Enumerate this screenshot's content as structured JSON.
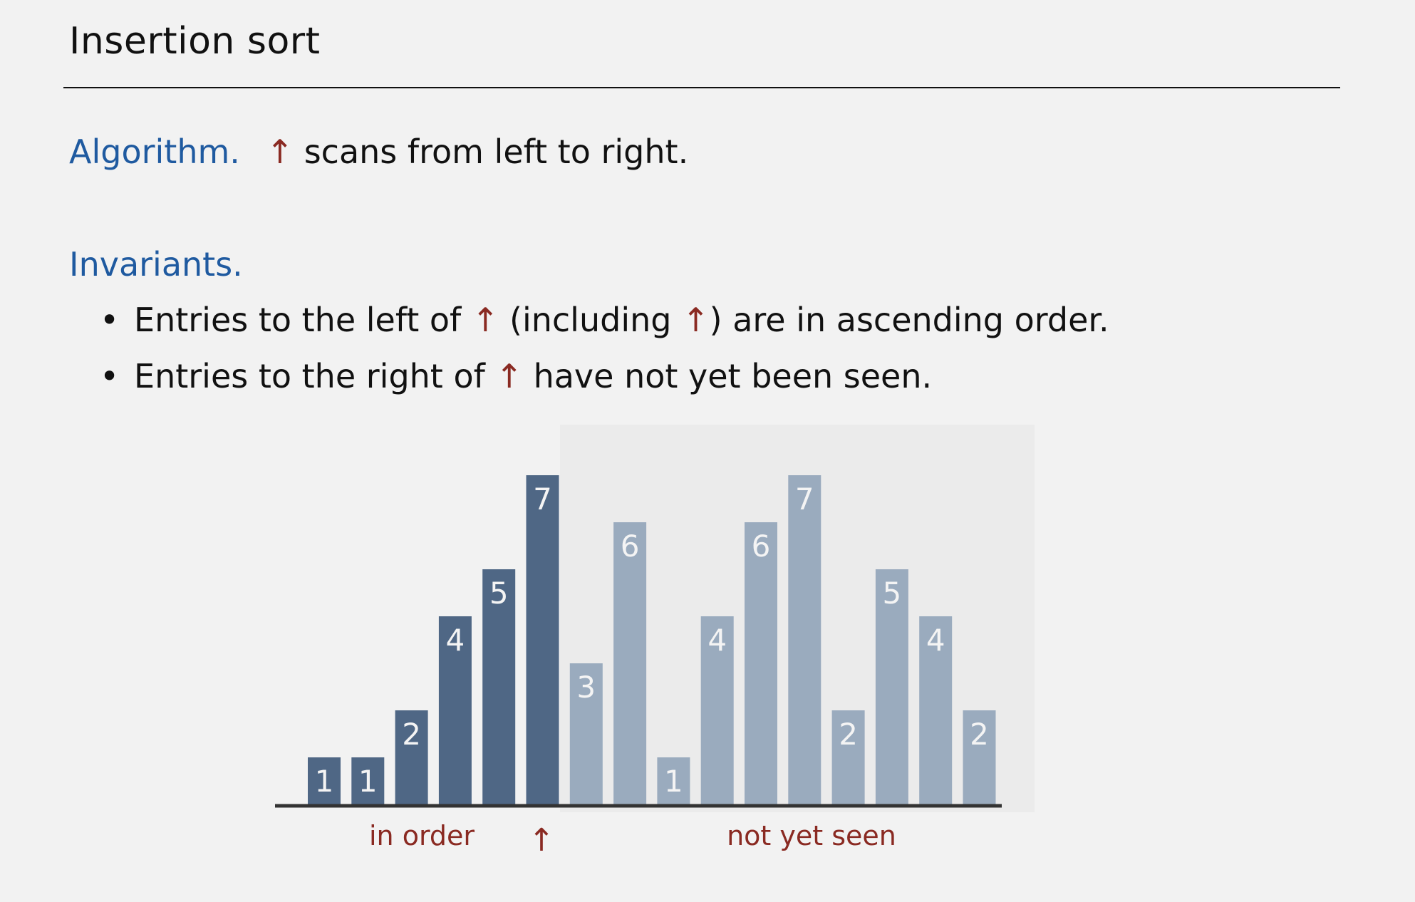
{
  "title": "Insertion sort",
  "algorithm": {
    "label": "Algorithm.",
    "arrow": "↑",
    "text": "scans from left to right."
  },
  "invariants": {
    "label": "Invariants.",
    "bullets": [
      {
        "parts": [
          "Entries to the left of ",
          "↑",
          " (including ",
          "↑",
          ") are in ascending order."
        ]
      },
      {
        "parts": [
          "Entries to the right of ",
          "↑",
          " have not yet been seen."
        ]
      }
    ]
  },
  "colors": {
    "sorted": "#4f6785",
    "unseen": "#9aabbe",
    "arrow": "#8a2a22",
    "heading": "#1f5aa0"
  },
  "chart_data": {
    "type": "bar",
    "values": [
      1,
      1,
      2,
      4,
      5,
      7,
      3,
      6,
      1,
      4,
      6,
      7,
      2,
      5,
      4,
      2
    ],
    "labels": [
      "1",
      "1",
      "2",
      "4",
      "5",
      "7",
      "3",
      "6",
      "1",
      "4",
      "6",
      "7",
      "2",
      "5",
      "4",
      "2"
    ],
    "sorted_count": 6,
    "region_labels": {
      "in_order": "in order",
      "pointer": "↑",
      "not_yet_seen": "not yet seen"
    }
  }
}
